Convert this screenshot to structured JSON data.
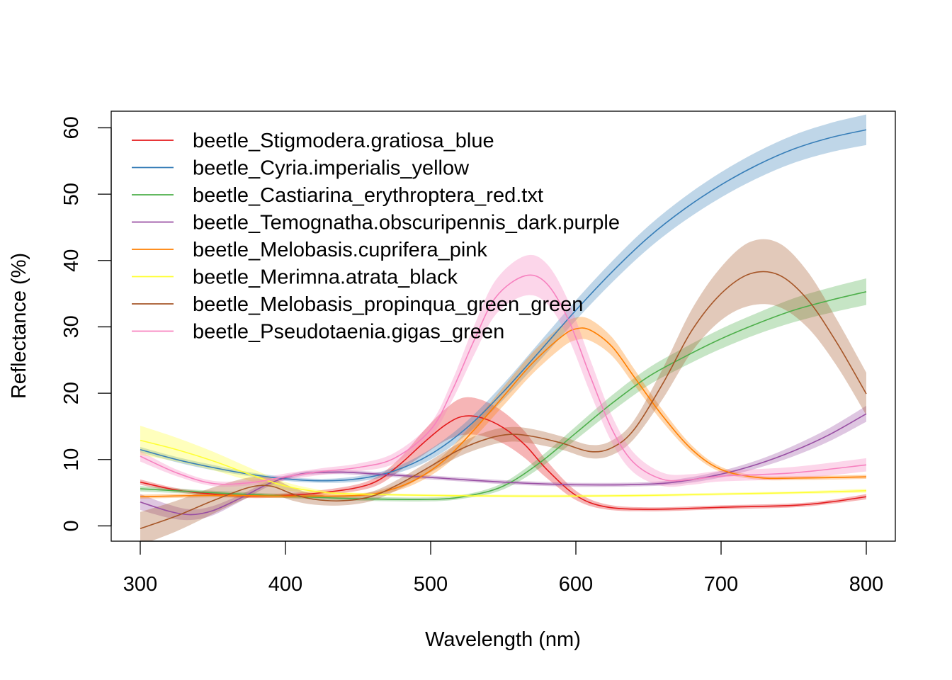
{
  "chart_data": {
    "type": "line",
    "xlabel": "Wavelength (nm)",
    "ylabel": "Reflectance (%)",
    "xlim": [
      280,
      820
    ],
    "ylim": [
      -2.3,
      62.5
    ],
    "xticks": [
      300,
      400,
      500,
      600,
      700,
      800
    ],
    "yticks": [
      0,
      10,
      20,
      30,
      40,
      50,
      60
    ],
    "grid": false,
    "legend_position": "top-left",
    "series": [
      {
        "name": "beetle_Stigmodera.gratiosa_blue",
        "color": "#e41a1c",
        "x": [
          300,
          325,
          350,
          375,
          400,
          425,
          450,
          465,
          480,
          495,
          510,
          522,
          535,
          550,
          565,
          580,
          600,
          620,
          650,
          700,
          750,
          775,
          800
        ],
        "y": [
          6.6,
          5.4,
          4.8,
          4.5,
          4.6,
          5.0,
          5.8,
          7.0,
          9.5,
          12.5,
          15.2,
          16.5,
          16.3,
          14.8,
          12.2,
          8.5,
          4.6,
          2.9,
          2.5,
          2.8,
          3.1,
          3.6,
          4.4
        ],
        "err": [
          0.4,
          0.3,
          0.3,
          0.3,
          0.3,
          0.4,
          0.5,
          0.7,
          1.0,
          1.8,
          2.4,
          2.8,
          2.7,
          2.4,
          2.0,
          1.3,
          0.7,
          0.4,
          0.3,
          0.3,
          0.3,
          0.3,
          0.4
        ]
      },
      {
        "name": "beetle_Cyria.imperialis_yellow",
        "color": "#377eb8",
        "x": [
          300,
          325,
          350,
          375,
          400,
          425,
          450,
          475,
          500,
          525,
          550,
          575,
          600,
          625,
          650,
          675,
          700,
          725,
          750,
          775,
          800
        ],
        "y": [
          11.5,
          10.0,
          8.8,
          7.8,
          7.1,
          6.8,
          7.1,
          8.3,
          10.8,
          14.8,
          20.2,
          26.3,
          32.5,
          38.3,
          43.5,
          47.8,
          51.4,
          54.4,
          56.8,
          58.5,
          59.7
        ],
        "err": [
          0.4,
          0.4,
          0.4,
          0.3,
          0.3,
          0.3,
          0.4,
          0.5,
          0.8,
          1.0,
          1.2,
          1.4,
          1.5,
          1.6,
          1.7,
          1.8,
          1.9,
          2.0,
          2.1,
          2.2,
          2.3
        ]
      },
      {
        "name": "beetle_Castiarina_erythroptera_red.txt",
        "color": "#4daf4a",
        "x": [
          300,
          350,
          400,
          450,
          500,
          525,
          550,
          575,
          600,
          625,
          650,
          675,
          700,
          725,
          750,
          775,
          800
        ],
        "y": [
          5.6,
          5.0,
          4.5,
          4.1,
          4.0,
          4.5,
          6.0,
          9.5,
          14.0,
          18.5,
          22.5,
          25.5,
          28.2,
          30.5,
          32.5,
          34.0,
          35.3
        ],
        "err": [
          0.4,
          0.3,
          0.3,
          0.3,
          0.3,
          0.3,
          0.5,
          0.8,
          1.0,
          1.2,
          1.3,
          1.4,
          1.5,
          1.6,
          1.8,
          1.9,
          2.0
        ]
      },
      {
        "name": "beetle_Temognatha.obscuripennis_dark.purple",
        "color": "#984ea3",
        "x": [
          300,
          320,
          335,
          350,
          370,
          390,
          410,
          430,
          450,
          500,
          550,
          600,
          650,
          675,
          700,
          725,
          750,
          775,
          800
        ],
        "y": [
          3.6,
          2.2,
          1.7,
          2.3,
          4.3,
          6.5,
          7.8,
          8.1,
          8.0,
          7.3,
          6.6,
          6.2,
          6.3,
          6.8,
          7.8,
          9.3,
          11.3,
          13.8,
          16.9
        ],
        "err": [
          1.2,
          1.0,
          0.8,
          0.7,
          0.5,
          0.4,
          0.3,
          0.3,
          0.3,
          0.3,
          0.3,
          0.3,
          0.3,
          0.4,
          0.5,
          0.6,
          0.8,
          1.0,
          1.2
        ]
      },
      {
        "name": "beetle_Melobasis.cuprifera_pink",
        "color": "#ff7f00",
        "x": [
          300,
          350,
          400,
          450,
          470,
          490,
          510,
          530,
          550,
          570,
          590,
          600,
          610,
          625,
          640,
          660,
          680,
          700,
          725,
          750,
          800
        ],
        "y": [
          4.4,
          4.6,
          4.5,
          4.6,
          5.3,
          7.0,
          10.0,
          14.5,
          19.5,
          24.5,
          28.5,
          29.7,
          29.5,
          27.0,
          22.5,
          16.5,
          11.5,
          8.5,
          7.3,
          7.2,
          7.4
        ],
        "err": [
          0.3,
          0.3,
          0.3,
          0.3,
          0.4,
          0.6,
          0.9,
          1.2,
          1.4,
          1.6,
          1.7,
          1.7,
          1.6,
          1.4,
          1.2,
          0.9,
          0.6,
          0.4,
          0.3,
          0.3,
          0.3
        ]
      },
      {
        "name": "beetle_Merimna.atrata_black",
        "color": "#ffff33",
        "x": [
          300,
          325,
          350,
          375,
          400,
          425,
          450,
          500,
          550,
          600,
          650,
          700,
          750,
          800
        ],
        "y": [
          12.9,
          11.5,
          9.8,
          7.8,
          6.0,
          5.1,
          4.8,
          4.6,
          4.5,
          4.5,
          4.6,
          4.8,
          5.0,
          5.3
        ],
        "err": [
          2.2,
          1.8,
          1.4,
          1.0,
          0.6,
          0.3,
          0.2,
          0.2,
          0.2,
          0.2,
          0.2,
          0.2,
          0.2,
          0.3
        ]
      },
      {
        "name": "beetle_Melobasis_propinqua_green_green",
        "color": "#a65628",
        "x": [
          300,
          325,
          350,
          375,
          390,
          405,
          420,
          440,
          460,
          480,
          500,
          520,
          540,
          555,
          570,
          590,
          610,
          625,
          640,
          660,
          680,
          700,
          720,
          740,
          760,
          780,
          800
        ],
        "y": [
          -0.4,
          1.5,
          3.8,
          5.8,
          6.0,
          4.8,
          4.0,
          3.8,
          4.5,
          6.5,
          9.0,
          11.5,
          13.2,
          13.8,
          13.5,
          12.5,
          11.2,
          11.8,
          14.5,
          21.5,
          29.5,
          35.0,
          38.0,
          37.8,
          34.0,
          27.5,
          19.9
        ],
        "err": [
          2.5,
          2.3,
          2.0,
          1.5,
          1.2,
          1.0,
          0.8,
          0.7,
          0.7,
          0.8,
          0.9,
          1.0,
          1.1,
          1.1,
          1.1,
          1.0,
          1.0,
          1.1,
          1.4,
          2.3,
          3.2,
          4.0,
          4.8,
          4.8,
          4.2,
          3.5,
          3.2
        ]
      },
      {
        "name": "beetle_Pseudotaenia.gigas_green",
        "color": "#f781bf",
        "x": [
          300,
          325,
          350,
          375,
          400,
          425,
          450,
          475,
          500,
          515,
          530,
          545,
          565,
          580,
          595,
          610,
          625,
          640,
          660,
          680,
          700,
          750,
          800
        ],
        "y": [
          10.5,
          8.0,
          6.4,
          6.5,
          7.4,
          8.2,
          8.8,
          10.2,
          14.5,
          20.5,
          28.0,
          34.5,
          37.7,
          36.5,
          31.0,
          22.5,
          14.5,
          9.5,
          7.0,
          7.0,
          7.5,
          8.0,
          9.2
        ],
        "err": [
          0.8,
          0.5,
          0.4,
          0.4,
          0.5,
          0.5,
          0.6,
          0.8,
          1.0,
          1.5,
          2.2,
          2.6,
          3.0,
          3.0,
          2.8,
          2.5,
          2.0,
          1.5,
          1.0,
          0.8,
          0.8,
          0.9,
          1.0
        ]
      }
    ]
  }
}
